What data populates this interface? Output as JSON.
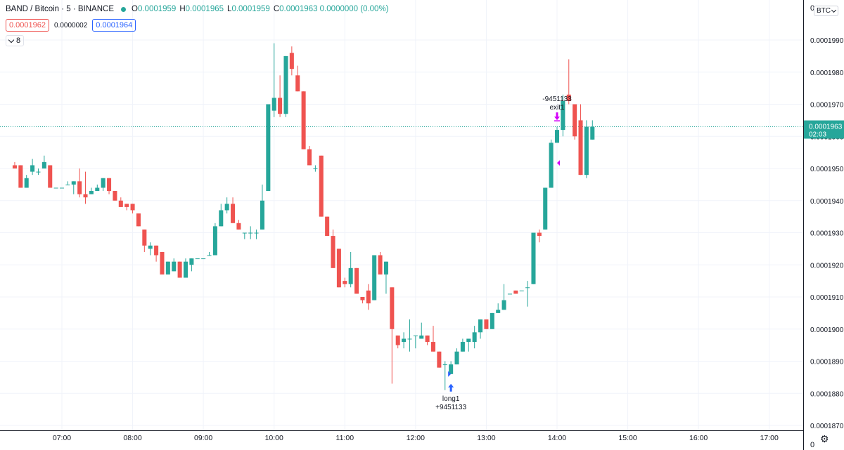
{
  "header": {
    "symbol": "BAND / Bitcoin · 5 · BINANCE",
    "ohlc": [
      {
        "k": "O",
        "v": "0.0001959"
      },
      {
        "k": "H",
        "v": "0.0001965"
      },
      {
        "k": "L",
        "v": "0.0001959"
      },
      {
        "k": "C",
        "v": "0.0001963 0.0000000 (0.00%)"
      }
    ],
    "bid": "0.0001962",
    "spread": "0.0000002",
    "ask": "0.0001964",
    "indicator_count": "8",
    "currency_button": "BTC",
    "top_right_digit": "0",
    "bottom_right_digit": "0"
  },
  "colors": {
    "up": "#26a69a",
    "down": "#ef5350",
    "buy": "#2962ff",
    "sell": "#d500f9",
    "grid": "#f0f3fa"
  },
  "chart_data": {
    "type": "candlestick",
    "ylim": [
      0.000187,
      0.0002
    ],
    "y_ticks": [
      "0.0001990",
      "0.0001980",
      "0.0001970",
      "0.0001960",
      "0.0001950",
      "0.0001940",
      "0.0001930",
      "0.0001920",
      "0.0001910",
      "0.0001900",
      "0.0001890",
      "0.0001880",
      "0.0001870"
    ],
    "y_tick_values": [
      0.000199,
      0.000198,
      0.000197,
      0.000196,
      0.000195,
      0.000194,
      0.000193,
      0.000192,
      0.000191,
      0.00019,
      0.000189,
      0.000188,
      0.000187
    ],
    "x_ticks": [
      "07:00",
      "08:00",
      "09:00",
      "10:00",
      "11:00",
      "12:00",
      "13:00",
      "14:00",
      "15:00",
      "16:00",
      "17:00"
    ],
    "x_tick_minutes": [
      420,
      480,
      540,
      600,
      660,
      720,
      780,
      840,
      900,
      960,
      1020
    ],
    "bar_interval_min": 5,
    "candles": [
      {
        "t": "06:20",
        "o": 0.0001951,
        "h": 0.0001952,
        "l": 0.000195,
        "c": 0.000195
      },
      {
        "t": "06:25",
        "o": 0.0001951,
        "h": 0.0001951,
        "l": 0.0001944,
        "c": 0.0001944
      },
      {
        "t": "06:30",
        "o": 0.0001944,
        "h": 0.0001948,
        "l": 0.0001944,
        "c": 0.0001947
      },
      {
        "t": "06:35",
        "o": 0.0001949,
        "h": 0.0001953,
        "l": 0.0001948,
        "c": 0.0001951
      },
      {
        "t": "06:40",
        "o": 0.0001949,
        "h": 0.000195,
        "l": 0.0001948,
        "c": 0.0001949
      },
      {
        "t": "06:45",
        "o": 0.000195,
        "h": 0.0001954,
        "l": 0.000195,
        "c": 0.0001952
      },
      {
        "t": "06:50",
        "o": 0.0001951,
        "h": 0.0001951,
        "l": 0.0001944,
        "c": 0.0001944
      },
      {
        "t": "06:55",
        "o": 0.0001944,
        "h": 0.0001944,
        "l": 0.0001944,
        "c": 0.0001944
      },
      {
        "t": "07:00",
        "o": 0.0001944,
        "h": 0.0001944,
        "l": 0.0001944,
        "c": 0.0001944
      },
      {
        "t": "07:05",
        "o": 0.0001945,
        "h": 0.0001946,
        "l": 0.0001945,
        "c": 0.0001945
      },
      {
        "t": "07:10",
        "o": 0.0001945,
        "h": 0.0001946,
        "l": 0.0001942,
        "c": 0.0001946
      },
      {
        "t": "07:15",
        "o": 0.0001946,
        "h": 0.000195,
        "l": 0.0001941,
        "c": 0.0001942
      },
      {
        "t": "07:20",
        "o": 0.0001942,
        "h": 0.0001949,
        "l": 0.0001939,
        "c": 0.0001941
      },
      {
        "t": "07:25",
        "o": 0.0001942,
        "h": 0.0001944,
        "l": 0.0001942,
        "c": 0.0001943
      },
      {
        "t": "07:30",
        "o": 0.0001943,
        "h": 0.0001945,
        "l": 0.0001943,
        "c": 0.0001944
      },
      {
        "t": "07:35",
        "o": 0.0001944,
        "h": 0.0001947,
        "l": 0.0001943,
        "c": 0.0001947
      },
      {
        "t": "07:40",
        "o": 0.0001947,
        "h": 0.0001947,
        "l": 0.0001942,
        "c": 0.0001943
      },
      {
        "t": "07:45",
        "o": 0.0001943,
        "h": 0.0001943,
        "l": 0.000194,
        "c": 0.000194
      },
      {
        "t": "07:50",
        "o": 0.000194,
        "h": 0.0001941,
        "l": 0.0001938,
        "c": 0.0001938
      },
      {
        "t": "07:55",
        "o": 0.0001939,
        "h": 0.0001939,
        "l": 0.0001937,
        "c": 0.0001938
      },
      {
        "t": "08:00",
        "o": 0.0001939,
        "h": 0.0001939,
        "l": 0.0001936,
        "c": 0.0001937
      },
      {
        "t": "08:05",
        "o": 0.0001936,
        "h": 0.0001936,
        "l": 0.0001932,
        "c": 0.0001932
      },
      {
        "t": "08:10",
        "o": 0.0001931,
        "h": 0.0001931,
        "l": 0.0001924,
        "c": 0.0001926
      },
      {
        "t": "08:15",
        "o": 0.0001925,
        "h": 0.0001927,
        "l": 0.0001923,
        "c": 0.0001926
      },
      {
        "t": "08:20",
        "o": 0.0001926,
        "h": 0.0001926,
        "l": 0.0001921,
        "c": 0.0001923
      },
      {
        "t": "08:25",
        "o": 0.0001924,
        "h": 0.0001924,
        "l": 0.0001917,
        "c": 0.0001917
      },
      {
        "t": "08:30",
        "o": 0.0001917,
        "h": 0.0001921,
        "l": 0.0001917,
        "c": 0.0001921
      },
      {
        "t": "08:35",
        "o": 0.0001918,
        "h": 0.0001922,
        "l": 0.0001918,
        "c": 0.0001921
      },
      {
        "t": "08:40",
        "o": 0.0001921,
        "h": 0.0001921,
        "l": 0.0001916,
        "c": 0.0001916
      },
      {
        "t": "08:45",
        "o": 0.0001916,
        "h": 0.0001922,
        "l": 0.0001916,
        "c": 0.0001921
      },
      {
        "t": "08:50",
        "o": 0.000192,
        "h": 0.0001922,
        "l": 0.0001918,
        "c": 0.0001922
      },
      {
        "t": "08:55",
        "o": 0.0001922,
        "h": 0.0001922,
        "l": 0.0001922,
        "c": 0.0001922
      },
      {
        "t": "09:00",
        "o": 0.0001922,
        "h": 0.0001922,
        "l": 0.0001922,
        "c": 0.0001922
      },
      {
        "t": "09:05",
        "o": 0.0001923,
        "h": 0.0001924,
        "l": 0.0001923,
        "c": 0.0001923
      },
      {
        "t": "09:10",
        "o": 0.0001923,
        "h": 0.0001933,
        "l": 0.0001923,
        "c": 0.0001932
      },
      {
        "t": "09:15",
        "o": 0.0001932,
        "h": 0.0001939,
        "l": 0.0001932,
        "c": 0.0001937
      },
      {
        "t": "09:20",
        "o": 0.0001937,
        "h": 0.0001941,
        "l": 0.0001936,
        "c": 0.0001939
      },
      {
        "t": "09:25",
        "o": 0.0001939,
        "h": 0.0001941,
        "l": 0.0001933,
        "c": 0.0001933
      },
      {
        "t": "09:30",
        "o": 0.0001933,
        "h": 0.0001934,
        "l": 0.0001931,
        "c": 0.0001931
      },
      {
        "t": "09:35",
        "o": 0.000193,
        "h": 0.000193,
        "l": 0.0001928,
        "c": 0.000193
      },
      {
        "t": "09:40",
        "o": 0.000193,
        "h": 0.0001932,
        "l": 0.0001928,
        "c": 0.000193
      },
      {
        "t": "09:45",
        "o": 0.000193,
        "h": 0.0001931,
        "l": 0.0001928,
        "c": 0.000193
      },
      {
        "t": "09:50",
        "o": 0.0001931,
        "h": 0.0001945,
        "l": 0.0001931,
        "c": 0.000194
      },
      {
        "t": "09:55",
        "o": 0.0001943,
        "h": 0.000197,
        "l": 0.0001943,
        "c": 0.000197
      },
      {
        "t": "10:00",
        "o": 0.0001968,
        "h": 0.0001989,
        "l": 0.0001966,
        "c": 0.0001972
      },
      {
        "t": "10:05",
        "o": 0.0001972,
        "h": 0.0001979,
        "l": 0.0001966,
        "c": 0.0001967
      },
      {
        "t": "10:10",
        "o": 0.0001967,
        "h": 0.0001985,
        "l": 0.0001966,
        "c": 0.0001985
      },
      {
        "t": "10:15",
        "o": 0.0001986,
        "h": 0.0001988,
        "l": 0.0001979,
        "c": 0.0001981
      },
      {
        "t": "10:20",
        "o": 0.0001979,
        "h": 0.0001982,
        "l": 0.0001974,
        "c": 0.0001974
      },
      {
        "t": "10:25",
        "o": 0.0001974,
        "h": 0.0001974,
        "l": 0.0001956,
        "c": 0.0001956
      },
      {
        "t": "10:30",
        "o": 0.0001956,
        "h": 0.0001957,
        "l": 0.0001951,
        "c": 0.0001951
      },
      {
        "t": "10:35",
        "o": 0.000195,
        "h": 0.0001951,
        "l": 0.0001949,
        "c": 0.000195
      },
      {
        "t": "10:40",
        "o": 0.0001954,
        "h": 0.0001954,
        "l": 0.0001935,
        "c": 0.0001935
      },
      {
        "t": "10:45",
        "o": 0.0001935,
        "h": 0.0001935,
        "l": 0.0001929,
        "c": 0.0001929
      },
      {
        "t": "10:50",
        "o": 0.0001929,
        "h": 0.0001931,
        "l": 0.0001919,
        "c": 0.0001919
      },
      {
        "t": "10:55",
        "o": 0.0001925,
        "h": 0.0001925,
        "l": 0.0001913,
        "c": 0.0001913
      },
      {
        "t": "11:00",
        "o": 0.0001915,
        "h": 0.0001916,
        "l": 0.0001913,
        "c": 0.0001914
      },
      {
        "t": "11:05",
        "o": 0.0001914,
        "h": 0.0001924,
        "l": 0.0001913,
        "c": 0.0001919
      },
      {
        "t": "11:10",
        "o": 0.0001919,
        "h": 0.0001919,
        "l": 0.0001911,
        "c": 0.0001911
      },
      {
        "t": "11:15",
        "o": 0.000191,
        "h": 0.000191,
        "l": 0.0001908,
        "c": 0.0001909
      },
      {
        "t": "11:20",
        "o": 0.0001912,
        "h": 0.0001914,
        "l": 0.0001906,
        "c": 0.0001908
      },
      {
        "t": "11:25",
        "o": 0.0001909,
        "h": 0.0001923,
        "l": 0.0001909,
        "c": 0.0001923
      },
      {
        "t": "11:30",
        "o": 0.0001923,
        "h": 0.0001924,
        "l": 0.0001917,
        "c": 0.0001917
      },
      {
        "t": "11:35",
        "o": 0.0001917,
        "h": 0.0001921,
        "l": 0.0001911,
        "c": 0.0001921
      },
      {
        "t": "11:40",
        "o": 0.0001913,
        "h": 0.0001913,
        "l": 0.0001883,
        "c": 0.00019
      },
      {
        "t": "11:45",
        "o": 0.0001898,
        "h": 0.0001898,
        "l": 0.0001894,
        "c": 0.0001895
      },
      {
        "t": "11:50",
        "o": 0.0001896,
        "h": 0.0001899,
        "l": 0.0001894,
        "c": 0.0001897
      },
      {
        "t": "11:55",
        "o": 0.0001897,
        "h": 0.0001903,
        "l": 0.0001893,
        "c": 0.0001897
      },
      {
        "t": "12:00",
        "o": 0.0001898,
        "h": 0.0001898,
        "l": 0.0001894,
        "c": 0.0001898
      },
      {
        "t": "12:05",
        "o": 0.0001897,
        "h": 0.0001902,
        "l": 0.0001897,
        "c": 0.0001898
      },
      {
        "t": "12:10",
        "o": 0.0001898,
        "h": 0.0001898,
        "l": 0.0001895,
        "c": 0.0001896
      },
      {
        "t": "12:15",
        "o": 0.0001896,
        "h": 0.0001901,
        "l": 0.0001893,
        "c": 0.0001893
      },
      {
        "t": "12:20",
        "o": 0.0001893,
        "h": 0.0001893,
        "l": 0.0001888,
        "c": 0.0001888
      },
      {
        "t": "12:25",
        "o": 0.0001889,
        "h": 0.000189,
        "l": 0.0001881,
        "c": 0.0001889
      },
      {
        "t": "12:30",
        "o": 0.0001886,
        "h": 0.000189,
        "l": 0.0001886,
        "c": 0.0001889
      },
      {
        "t": "12:35",
        "o": 0.0001889,
        "h": 0.0001894,
        "l": 0.0001889,
        "c": 0.0001893
      },
      {
        "t": "12:40",
        "o": 0.0001893,
        "h": 0.0001897,
        "l": 0.0001893,
        "c": 0.0001896
      },
      {
        "t": "12:45",
        "o": 0.0001896,
        "h": 0.0001897,
        "l": 0.0001893,
        "c": 0.0001897
      },
      {
        "t": "12:50",
        "o": 0.0001896,
        "h": 0.0001901,
        "l": 0.0001894,
        "c": 0.0001899
      },
      {
        "t": "12:55",
        "o": 0.0001899,
        "h": 0.0001903,
        "l": 0.0001897,
        "c": 0.0001903
      },
      {
        "t": "13:00",
        "o": 0.0001903,
        "h": 0.0001903,
        "l": 0.00019,
        "c": 0.00019
      },
      {
        "t": "13:05",
        "o": 0.00019,
        "h": 0.0001905,
        "l": 0.00019,
        "c": 0.0001905
      },
      {
        "t": "13:10",
        "o": 0.0001905,
        "h": 0.0001908,
        "l": 0.0001905,
        "c": 0.0001906
      },
      {
        "t": "13:15",
        "o": 0.0001906,
        "h": 0.0001914,
        "l": 0.0001906,
        "c": 0.0001909
      },
      {
        "t": "13:20",
        "o": 0.0001911,
        "h": 0.0001911,
        "l": 0.0001911,
        "c": 0.0001911
      },
      {
        "t": "13:25",
        "o": 0.0001912,
        "h": 0.0001912,
        "l": 0.0001911,
        "c": 0.0001911
      },
      {
        "t": "13:30",
        "o": 0.0001912,
        "h": 0.0001912,
        "l": 0.0001912,
        "c": 0.0001912
      },
      {
        "t": "13:35",
        "o": 0.0001913,
        "h": 0.0001915,
        "l": 0.0001907,
        "c": 0.0001913
      },
      {
        "t": "13:40",
        "o": 0.0001914,
        "h": 0.000193,
        "l": 0.0001914,
        "c": 0.000193
      },
      {
        "t": "13:45",
        "o": 0.000193,
        "h": 0.0001931,
        "l": 0.0001927,
        "c": 0.0001929
      },
      {
        "t": "13:50",
        "o": 0.0001931,
        "h": 0.0001944,
        "l": 0.0001931,
        "c": 0.0001944
      },
      {
        "t": "13:55",
        "o": 0.0001944,
        "h": 0.0001959,
        "l": 0.0001944,
        "c": 0.0001958
      },
      {
        "t": "14:00",
        "o": 0.0001958,
        "h": 0.0001963,
        "l": 0.0001958,
        "c": 0.0001962
      },
      {
        "t": "14:05",
        "o": 0.0001962,
        "h": 0.0001973,
        "l": 0.000196,
        "c": 0.0001971
      },
      {
        "t": "14:10",
        "o": 0.0001973,
        "h": 0.0001984,
        "l": 0.000197,
        "c": 0.0001971
      },
      {
        "t": "14:15",
        "o": 0.000197,
        "h": 0.000197,
        "l": 0.0001959,
        "c": 0.000196
      },
      {
        "t": "14:20",
        "o": 0.0001965,
        "h": 0.000197,
        "l": 0.0001948,
        "c": 0.0001948
      },
      {
        "t": "14:25",
        "o": 0.0001948,
        "h": 0.0001965,
        "l": 0.0001947,
        "c": 0.0001963
      },
      {
        "t": "14:30",
        "o": 0.0001959,
        "h": 0.0001965,
        "l": 0.0001959,
        "c": 0.0001963
      }
    ],
    "current_price_label": "0.0001963",
    "countdown": "02:03",
    "current_price": 0.0001963,
    "trades": [
      {
        "type": "entry",
        "side": "long",
        "name": "long1",
        "qty": "+9451133",
        "t": "12:30",
        "price": 0.0001886
      },
      {
        "type": "exit",
        "side": "sell",
        "name": "exit1",
        "qty": "-9451133",
        "t": "14:00",
        "price": 0.0001962
      }
    ]
  }
}
